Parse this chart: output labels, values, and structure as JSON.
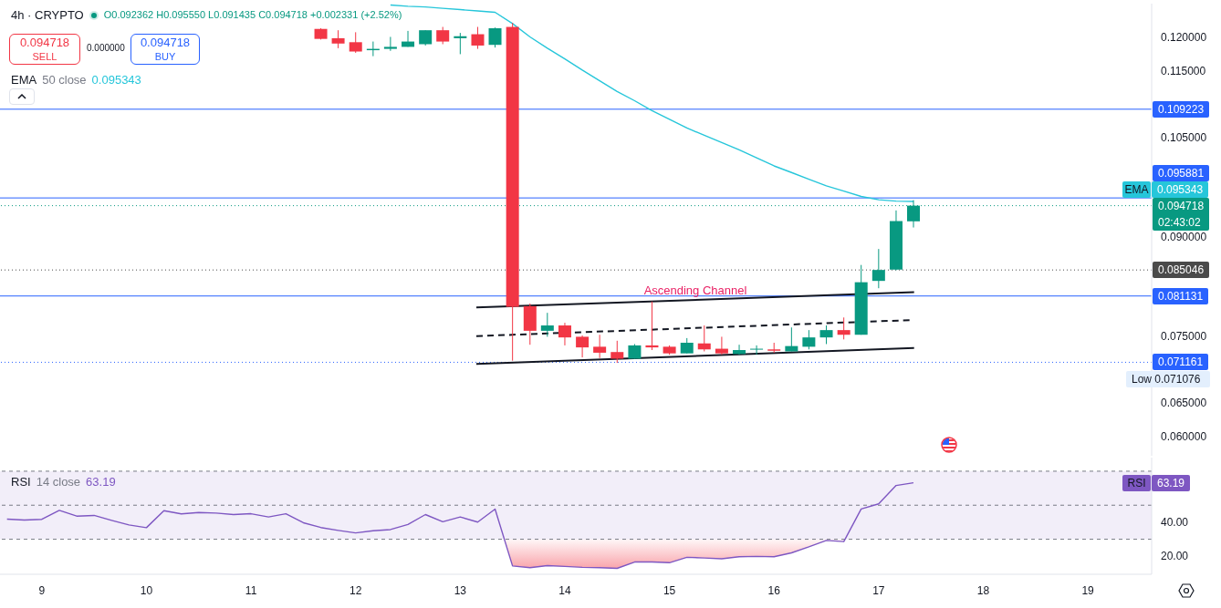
{
  "chart_data": [
    {
      "type": "candlestick",
      "title": "4h · CRYPTO",
      "x": [
        11.667,
        11.833,
        12,
        12.167,
        12.333,
        12.5,
        12.667,
        12.833,
        13,
        13.167,
        13.333,
        13.5,
        13.667,
        13.833,
        14,
        14.167,
        14.333,
        14.5,
        14.667,
        14.833,
        15,
        15.167,
        15.333,
        15.5,
        15.667,
        15.833,
        16,
        16.167,
        16.333,
        16.5,
        16.667,
        16.833,
        17,
        17.167,
        17.333
      ],
      "ohlc": [
        [
          0.1213,
          0.1214,
          0.1197,
          0.1198
        ],
        [
          0.1199,
          0.1211,
          0.1184,
          0.1191
        ],
        [
          0.1193,
          0.1208,
          0.1177,
          0.1179
        ],
        [
          0.1181,
          0.1194,
          0.1172,
          0.1183
        ],
        [
          0.1183,
          0.1201,
          0.118,
          0.1186
        ],
        [
          0.1186,
          0.121,
          0.1186,
          0.1194
        ],
        [
          0.119,
          0.1211,
          0.1188,
          0.1211
        ],
        [
          0.1211,
          0.1216,
          0.119,
          0.1194
        ],
        [
          0.1199,
          0.1207,
          0.1175,
          0.1202
        ],
        [
          0.1205,
          0.1216,
          0.1183,
          0.1188
        ],
        [
          0.1189,
          0.1215,
          0.1185,
          0.1214
        ],
        [
          0.1216,
          0.1222,
          0.0714,
          0.0795
        ],
        [
          0.0796,
          0.08,
          0.0738,
          0.0759
        ],
        [
          0.0759,
          0.0786,
          0.075,
          0.0767
        ],
        [
          0.0767,
          0.0771,
          0.0737,
          0.0749
        ],
        [
          0.075,
          0.0752,
          0.0719,
          0.0734
        ],
        [
          0.0735,
          0.0753,
          0.0718,
          0.0726
        ],
        [
          0.0727,
          0.0744,
          0.071076,
          0.0717
        ],
        [
          0.0717,
          0.0739,
          0.0717,
          0.0737
        ],
        [
          0.0737,
          0.0803,
          0.073,
          0.0734
        ],
        [
          0.0735,
          0.0737,
          0.0723,
          0.0725
        ],
        [
          0.0725,
          0.0748,
          0.0725,
          0.0741
        ],
        [
          0.074,
          0.0767,
          0.0728,
          0.0731
        ],
        [
          0.0732,
          0.075,
          0.0723,
          0.0725
        ],
        [
          0.0724,
          0.0738,
          0.0723,
          0.073
        ],
        [
          0.0731,
          0.0737,
          0.0723,
          0.0732
        ],
        [
          0.0731,
          0.0741,
          0.0726,
          0.0729
        ],
        [
          0.0728,
          0.0764,
          0.0728,
          0.0736
        ],
        [
          0.0735,
          0.076,
          0.0731,
          0.0749
        ],
        [
          0.0749,
          0.0767,
          0.0739,
          0.076
        ],
        [
          0.076,
          0.0779,
          0.0746,
          0.0753
        ],
        [
          0.0753,
          0.0858,
          0.0753,
          0.0832
        ],
        [
          0.0834,
          0.0882,
          0.0823,
          0.085046
        ],
        [
          0.0851,
          0.094,
          0.085,
          0.0924
        ],
        [
          0.092362,
          0.09555,
          0.091435,
          0.094718
        ]
      ],
      "colors": [
        "#f23645",
        "#f23645",
        "#f23645",
        "#089981",
        "#089981",
        "#089981",
        "#089981",
        "#f23645",
        "#089981",
        "#f23645",
        "#089981",
        "#f23645",
        "#f23645",
        "#089981",
        "#f23645",
        "#f23645",
        "#f23645",
        "#f23645",
        "#089981",
        "#f23645",
        "#f23645",
        "#089981",
        "#f23645",
        "#f23645",
        "#089981",
        "#089981",
        "#f23645",
        "#089981",
        "#089981",
        "#089981",
        "#f23645",
        "#089981",
        "#089981",
        "#089981",
        "#089981"
      ],
      "series": [
        {
          "type": "line",
          "name": "EMA",
          "color": "#26c6da",
          "x": [
            12.333,
            12.5,
            12.667,
            12.833,
            13,
            13.167,
            13.333,
            13.5,
            13.667,
            13.833,
            14,
            14.167,
            14.333,
            14.5,
            14.667,
            14.833,
            15,
            15.167,
            15.333,
            15.5,
            15.667,
            15.833,
            16,
            16.167,
            16.333,
            16.5,
            16.667,
            16.833,
            17,
            17.167,
            17.333
          ],
          "values": [
            0.1249,
            0.1247,
            0.1246,
            0.1244,
            0.1242,
            0.124,
            0.1238,
            0.1221,
            0.1201,
            0.1184,
            0.1168,
            0.1151,
            0.1135,
            0.1119,
            0.1105,
            0.109,
            0.1077,
            0.1064,
            0.1053,
            0.1042,
            0.1031,
            0.1019,
            0.1007,
            0.0997,
            0.0987,
            0.0977,
            0.0969,
            0.0961,
            0.0956,
            0.0954,
            0.095343
          ]
        },
        {
          "type": "line",
          "color": "#131722",
          "x": [
            13.154,
            17.339
          ],
          "values": [
            0.0794,
            0.0817
          ]
        },
        {
          "type": "line",
          "color": "#131722",
          "x": [
            13.154,
            17.295
          ],
          "values": [
            0.0751,
            0.0775
          ],
          "line_style": "dashed"
        },
        {
          "type": "line",
          "color": "#131722",
          "x": [
            13.154,
            17.339
          ],
          "values": [
            0.0709,
            0.0733
          ]
        }
      ],
      "xlim": [
        8.6,
        19.61
      ],
      "ylim": [
        0.0571,
        0.1251
      ],
      "yticks": [
        {
          "value": 0.06,
          "label": "0.060000"
        },
        {
          "value": 0.065,
          "label": "0.065000"
        },
        {
          "value": 0.075,
          "label": "0.075000"
        },
        {
          "value": 0.09,
          "label": "0.090000"
        },
        {
          "value": 0.105,
          "label": "0.105000"
        },
        {
          "value": 0.115,
          "label": "0.115000"
        },
        {
          "value": 0.12,
          "label": "0.120000"
        }
      ],
      "ref_lines": [
        {
          "axis": "y",
          "value": 0.109223,
          "label": "0.109223",
          "color": "#2962ff"
        },
        {
          "axis": "y",
          "value": 0.095881,
          "label": "0.095881",
          "color": "#2962ff"
        },
        {
          "axis": "y",
          "value": 0.094718,
          "label": "0.094718\n02:43:02",
          "color": "#089981",
          "line_style": "dotted"
        },
        {
          "axis": "y",
          "value": 0.085046,
          "label": "0.085046",
          "color": "#4a4a4a",
          "line_style": "dotted"
        },
        {
          "axis": "y",
          "value": 0.081131,
          "label": "0.081131",
          "color": "#2962ff"
        },
        {
          "axis": "y",
          "value": 0.071161,
          "label": "0.071161",
          "color": "#2962ff",
          "line_style": "dotted"
        }
      ],
      "annotations": [
        "50 close",
        "O0.092362 H0.095550 L0.091435 C0.094718 +0.002331 (+2.52%)",
        "0.094718",
        "SELL",
        "0.000000",
        "0.094718",
        "BUY",
        "0.095343",
        "Ascending Channel",
        "Low 0.071076"
      ],
      "legend": "right",
      "tick_labels": "y"
    },
    {
      "type": "line",
      "x": [
        8.667,
        8.833,
        9,
        9.167,
        9.333,
        9.5,
        9.667,
        9.833,
        10,
        10.167,
        10.333,
        10.5,
        10.667,
        10.833,
        11,
        11.167,
        11.333,
        11.5,
        11.667,
        11.833,
        12,
        12.167,
        12.333,
        12.5,
        12.667,
        12.833,
        13,
        13.167,
        13.333,
        13.5,
        13.667,
        13.833,
        14,
        14.167,
        14.333,
        14.5,
        14.667,
        14.833,
        15,
        15.167,
        15.333,
        15.5,
        15.667,
        15.833,
        16,
        16.167,
        16.333,
        16.5,
        16.667,
        16.833,
        17,
        17.167,
        17.333
      ],
      "series": [
        {
          "name": "RSI",
          "color": "#7e57c2",
          "values": [
            41.8,
            41.3,
            41.7,
            47.0,
            43.6,
            44.0,
            41.1,
            38.4,
            36.8,
            46.8,
            44.9,
            45.7,
            45.4,
            44.5,
            45.0,
            43.1,
            45.0,
            39.7,
            36.9,
            35.2,
            33.7,
            35.0,
            35.7,
            38.7,
            44.5,
            40.3,
            43.1,
            40.1,
            47.7,
            14.3,
            13.3,
            14.5,
            14.0,
            13.5,
            13.3,
            12.9,
            16.6,
            16.6,
            16.2,
            19.4,
            19.0,
            18.5,
            19.7,
            19.9,
            19.7,
            22.0,
            25.5,
            29.3,
            28.6,
            47.8,
            50.8,
            61.6,
            63.19
          ]
        }
      ],
      "xlim": [
        8.6,
        19.61
      ],
      "xticks": [
        9,
        10,
        11,
        12,
        13,
        14,
        15,
        16,
        17,
        18,
        19
      ],
      "ylim": [
        9.4,
        78
      ],
      "yticks": [
        {
          "value": 20,
          "label": "20.00"
        },
        {
          "value": 40,
          "label": "40.00"
        }
      ],
      "bands": [
        {
          "axis": "y",
          "from": 30,
          "to": 70,
          "color": "#7e57c2"
        }
      ],
      "ref_lines": [
        {
          "axis": "y",
          "value": 70,
          "color": "#787b86",
          "line_style": "dashed"
        },
        {
          "axis": "y",
          "value": 50,
          "color": "#787b86",
          "line_style": "dashed"
        },
        {
          "axis": "y",
          "value": 30,
          "color": "#787b86",
          "line_style": "dashed"
        }
      ],
      "annotations": [
        "14 close",
        "63.19"
      ],
      "legend": "top right"
    }
  ]
}
